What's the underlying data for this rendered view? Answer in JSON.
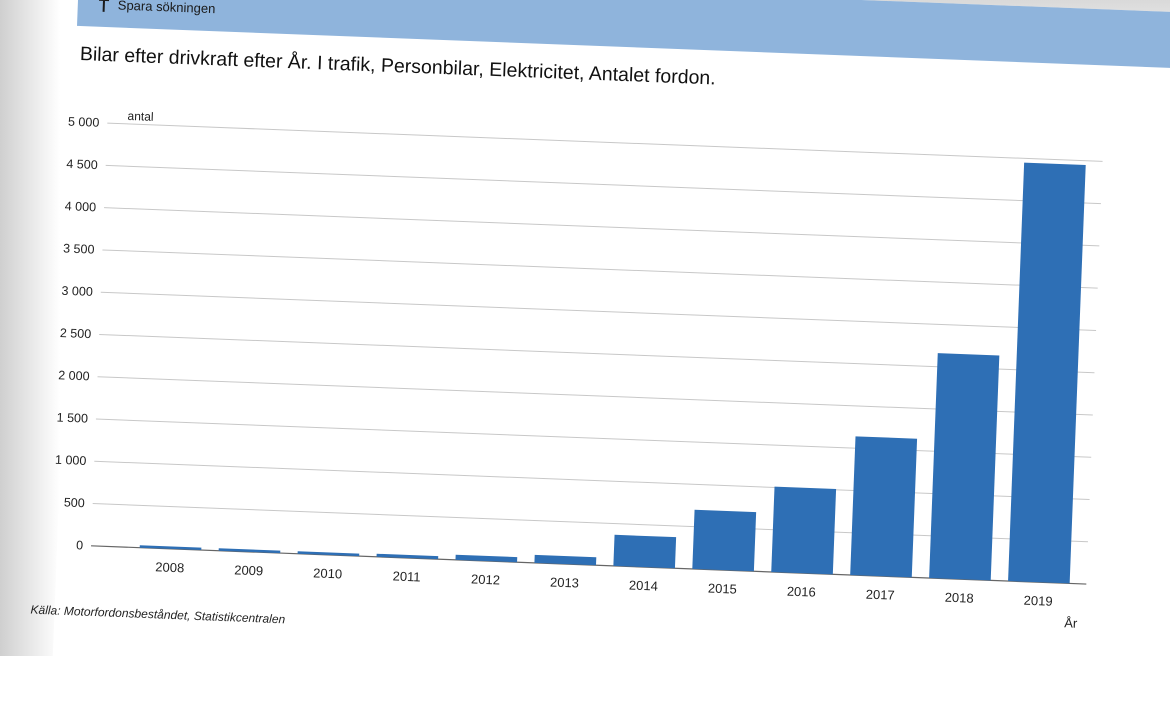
{
  "header": {
    "link_label": "Spara sökningen"
  },
  "chart_data": {
    "type": "bar",
    "title": "Bilar efter drivkraft efter År. I trafik, Personbilar, Elektricitet, Antalet fordon.",
    "ylabel": "antal",
    "xlabel": "År",
    "categories": [
      "2008",
      "2009",
      "2010",
      "2011",
      "2012",
      "2013",
      "2014",
      "2015",
      "2016",
      "2017",
      "2018",
      "2019"
    ],
    "values": [
      6,
      10,
      22,
      36,
      60,
      95,
      368,
      700,
      1010,
      1640,
      2660,
      4950
    ],
    "ylim": [
      0,
      5000
    ],
    "yticks": [
      0,
      500,
      1000,
      1500,
      2000,
      2500,
      3000,
      3500,
      4000,
      4500,
      5000
    ],
    "ytick_labels": [
      "0",
      "500",
      "1 000",
      "1 500",
      "2 000",
      "2 500",
      "3 000",
      "3 500",
      "4 000",
      "4 500",
      "5 000"
    ],
    "grid": true,
    "bar_color": "#2e6fb5",
    "grid_color": "#c8c8c8"
  },
  "source": {
    "text": "Källa: Motorfordonsbeståndet, Statistikcentralen"
  }
}
